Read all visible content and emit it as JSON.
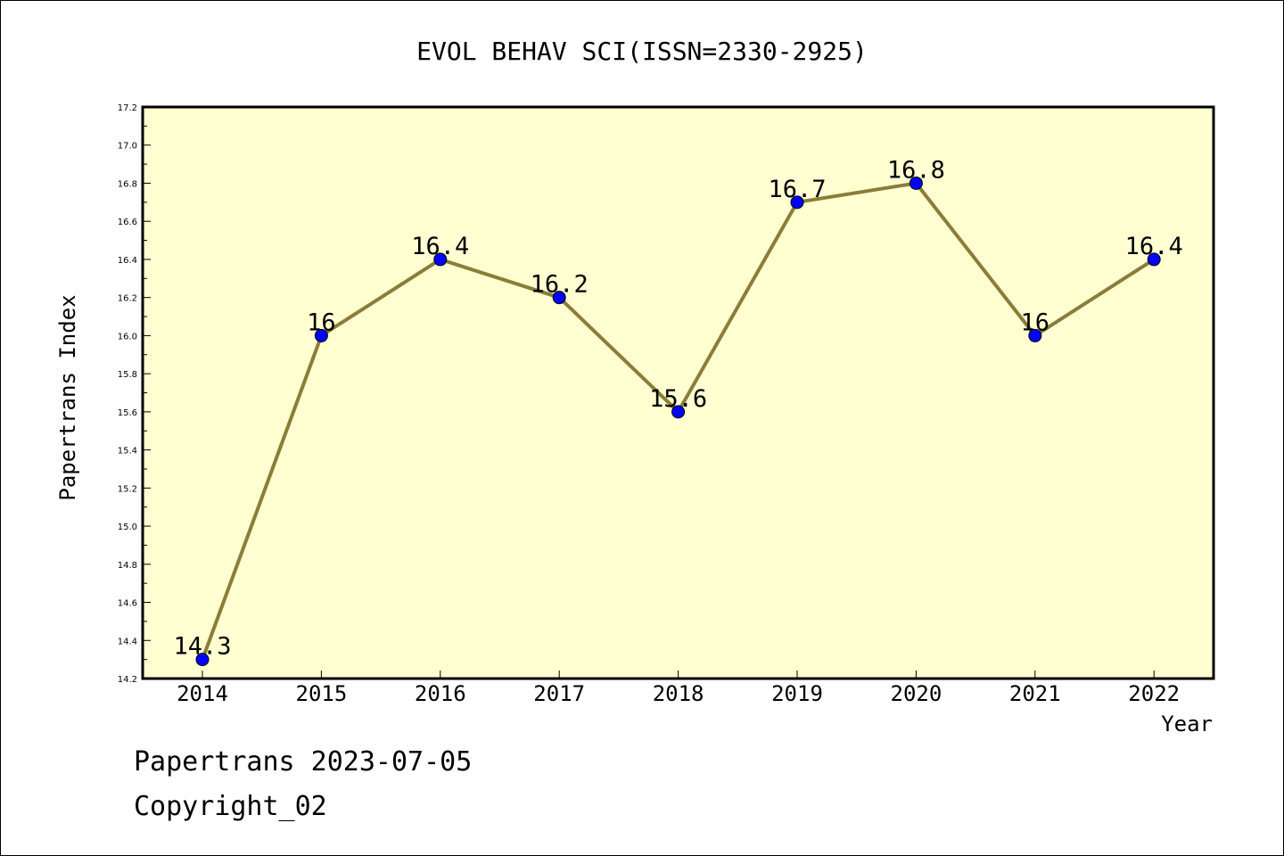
{
  "chart_data": {
    "type": "line",
    "title": "EVOL BEHAV SCI(ISSN=2330-2925)",
    "xlabel": "Year",
    "ylabel": "Papertrans Index",
    "categories": [
      "2014",
      "2015",
      "2016",
      "2017",
      "2018",
      "2019",
      "2020",
      "2021",
      "2022"
    ],
    "values": [
      14.3,
      16,
      16.4,
      16.2,
      15.6,
      16.7,
      16.8,
      16,
      16.4
    ],
    "data_labels": [
      "14.3",
      "16",
      "16.4",
      "16.2",
      "15.6",
      "16.7",
      "16.8",
      "16",
      "16.4"
    ],
    "ylim": [
      14.2,
      17.2
    ],
    "yticks": [
      "14.2",
      "14.4",
      "14.6",
      "14.8",
      "15.0",
      "15.2",
      "15.4",
      "15.6",
      "15.8",
      "16.0",
      "16.2",
      "16.4",
      "16.6",
      "16.8",
      "17.0",
      "17.2"
    ],
    "grid": false,
    "colors": {
      "plot_background": "#ffffd2",
      "line": "#8b7d37",
      "marker": "#0000ff"
    }
  },
  "footer": {
    "date_line": "Papertrans 2023-07-05",
    "copyright_line": "Copyright_02"
  }
}
